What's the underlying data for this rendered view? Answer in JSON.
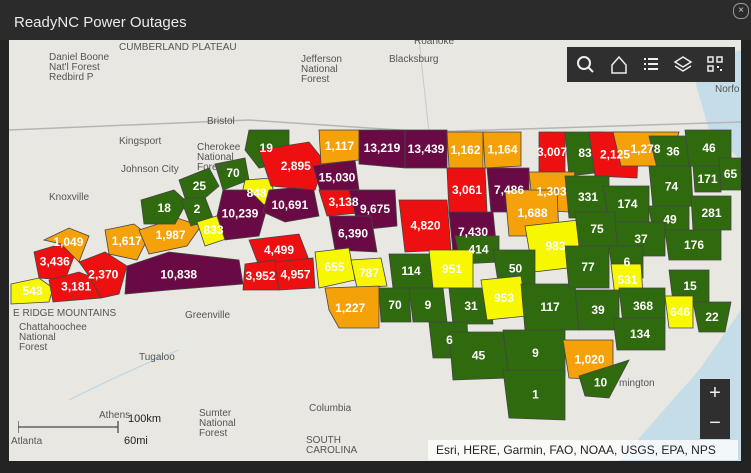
{
  "window": {
    "title": "ReadyNC Power Outages"
  },
  "colors": {
    "green": "#2f6a0e",
    "yellow": "#f7f700",
    "orange": "#f5a10a",
    "red": "#ee0f10",
    "purple": "#6a0a45",
    "basemap": "#e9e7e1",
    "water": "#c5dde8"
  },
  "toolbar": {
    "buttons": [
      "search-icon",
      "home-icon",
      "list-icon",
      "layers-icon",
      "qr-code-icon"
    ]
  },
  "zoom": {
    "in_label": "+",
    "out_label": "−"
  },
  "attribution": "Esri, HERE, Garmin, FAO, NOAA, USGS, EPA, NPS",
  "scale": {
    "km": "100km",
    "mi": "60mi"
  },
  "basemap_labels": [
    "CUMBERLAND PLATEAU",
    "Daniel Boone",
    "Nat'l Forest",
    "Redbird P",
    "Jefferson",
    "National",
    "Forest",
    "Blacksburg",
    "Bristol",
    "Kingsport",
    "Johnson City",
    "Cherokee",
    "National",
    "Forest",
    "Knoxville",
    "E RIDGE MOUNTAINS",
    "Chattahoochee",
    "National",
    "Forest",
    "Greenville",
    "Athens",
    "Sumter",
    "National",
    "Forest",
    "Columbia",
    "SOUTH",
    "CAROLINA",
    "Atlanta",
    "mington",
    "Norfo",
    "Roanoke",
    "Tugaloo"
  ],
  "outages": [
    {
      "value": "19",
      "level": "green"
    },
    {
      "value": "2,895",
      "level": "red"
    },
    {
      "value": "1,117",
      "level": "orange"
    },
    {
      "value": "13,219",
      "level": "purple"
    },
    {
      "value": "13,439",
      "level": "purple"
    },
    {
      "value": "1,162",
      "level": "orange"
    },
    {
      "value": "1,164",
      "level": "orange"
    },
    {
      "value": "3,007",
      "level": "red"
    },
    {
      "value": "83",
      "level": "green"
    },
    {
      "value": "2,125",
      "level": "red"
    },
    {
      "value": "1,278",
      "level": "orange"
    },
    {
      "value": "36",
      "level": "green"
    },
    {
      "value": "46",
      "level": "green"
    },
    {
      "value": "171",
      "level": "green"
    },
    {
      "value": "65",
      "level": "green"
    },
    {
      "value": "15,030",
      "level": "purple"
    },
    {
      "value": "70",
      "level": "green"
    },
    {
      "value": "25",
      "level": "green"
    },
    {
      "value": "18",
      "level": "green"
    },
    {
      "value": "2",
      "level": "green"
    },
    {
      "value": "848",
      "level": "yellow"
    },
    {
      "value": "10,691",
      "level": "purple"
    },
    {
      "value": "3,138",
      "level": "red"
    },
    {
      "value": "3,061",
      "level": "red"
    },
    {
      "value": "7,486",
      "level": "purple"
    },
    {
      "value": "1,303",
      "level": "orange"
    },
    {
      "value": "331",
      "level": "green"
    },
    {
      "value": "174",
      "level": "green"
    },
    {
      "value": "74",
      "level": "green"
    },
    {
      "value": "49",
      "level": "green"
    },
    {
      "value": "281",
      "level": "green"
    },
    {
      "value": "10,239",
      "level": "purple"
    },
    {
      "value": "9,675",
      "level": "purple"
    },
    {
      "value": "1,688",
      "level": "orange"
    },
    {
      "value": "75",
      "level": "green"
    },
    {
      "value": "1,617",
      "level": "orange"
    },
    {
      "value": "1,987",
      "level": "orange"
    },
    {
      "value": "833",
      "level": "yellow"
    },
    {
      "value": "6,390",
      "level": "purple"
    },
    {
      "value": "4,820",
      "level": "red"
    },
    {
      "value": "7,430",
      "level": "purple"
    },
    {
      "value": "983",
      "level": "yellow"
    },
    {
      "value": "37",
      "level": "green"
    },
    {
      "value": "176",
      "level": "green"
    },
    {
      "value": "1,049",
      "level": "orange"
    },
    {
      "value": "4,499",
      "level": "red"
    },
    {
      "value": "414",
      "level": "green"
    },
    {
      "value": "50",
      "level": "green"
    },
    {
      "value": "77",
      "level": "green"
    },
    {
      "value": "6",
      "level": "green"
    },
    {
      "value": "3,436",
      "level": "red"
    },
    {
      "value": "2,370",
      "level": "red"
    },
    {
      "value": "10,838",
      "level": "purple"
    },
    {
      "value": "3,952",
      "level": "red"
    },
    {
      "value": "4,957",
      "level": "red"
    },
    {
      "value": "655",
      "level": "yellow"
    },
    {
      "value": "787",
      "level": "yellow"
    },
    {
      "value": "114",
      "level": "green"
    },
    {
      "value": "951",
      "level": "yellow"
    },
    {
      "value": "531",
      "level": "yellow"
    },
    {
      "value": "15",
      "level": "green"
    },
    {
      "value": "543",
      "level": "yellow"
    },
    {
      "value": "3,181",
      "level": "red"
    },
    {
      "value": "1,227",
      "level": "orange"
    },
    {
      "value": "70",
      "level": "green"
    },
    {
      "value": "9",
      "level": "green"
    },
    {
      "value": "31",
      "level": "green"
    },
    {
      "value": "953",
      "level": "yellow"
    },
    {
      "value": "117",
      "level": "green"
    },
    {
      "value": "368",
      "level": "green"
    },
    {
      "value": "646",
      "level": "yellow"
    },
    {
      "value": "22",
      "level": "green"
    },
    {
      "value": "6",
      "level": "green"
    },
    {
      "value": "39",
      "level": "green"
    },
    {
      "value": "134",
      "level": "green"
    },
    {
      "value": "45",
      "level": "green"
    },
    {
      "value": "9",
      "level": "green"
    },
    {
      "value": "1,020",
      "level": "orange"
    },
    {
      "value": "1",
      "level": "green"
    },
    {
      "value": "10",
      "level": "green"
    }
  ]
}
